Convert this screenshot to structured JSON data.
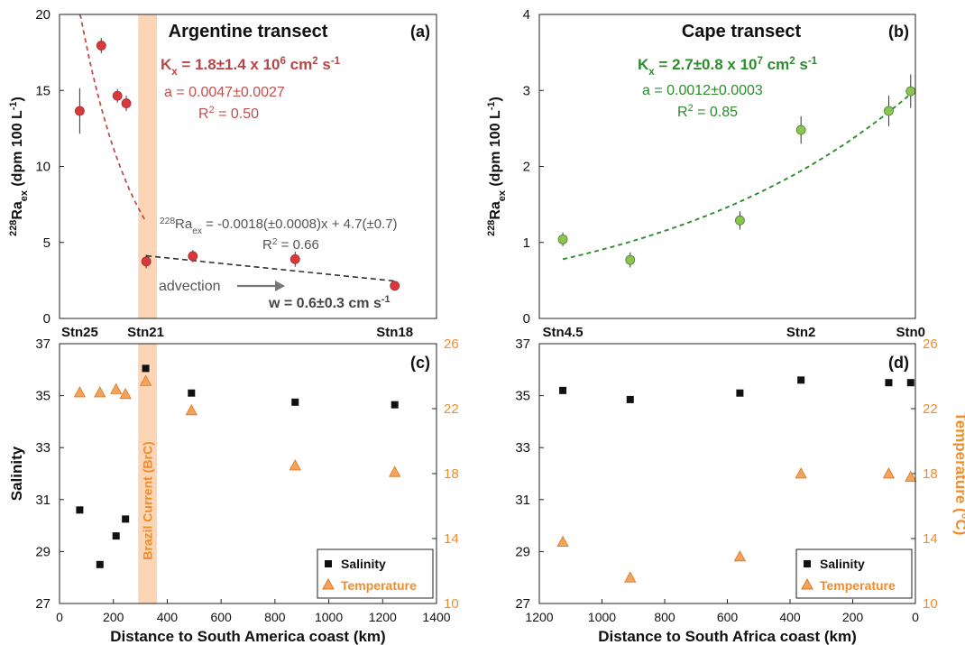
{
  "colors": {
    "red": "#c0504d",
    "red_marker": "#d9393a",
    "red_dark": "#b84545",
    "green": "#2e8b2e",
    "green_marker": "#8cc452",
    "orange": "#f28c28",
    "orange_fill": "#f5a25b",
    "brc_band": "#fbd5b5",
    "black": "#111111",
    "gray": "#555555"
  },
  "chart_data": [
    {
      "id": "a",
      "type": "scatter",
      "panel_label": "(a)",
      "title": "Argentine transect",
      "ylabel": "228Raex (dpm 100 L-1)",
      "xlim": [
        0,
        1400
      ],
      "ylim": [
        0,
        20
      ],
      "yticks": [
        0,
        5,
        10,
        15,
        20
      ],
      "station_labels": [
        {
          "text": "Stn25",
          "x": 75
        },
        {
          "text": "Stn21",
          "x": 320
        },
        {
          "text": "Stn18",
          "x": 1245
        }
      ],
      "series": [
        {
          "x": [
            75,
            155,
            215,
            248,
            322,
            495,
            875,
            1245
          ],
          "y": [
            13.65,
            17.95,
            14.65,
            14.15,
            3.75,
            4.1,
            3.9,
            2.15
          ],
          "err": [
            1.5,
            0.5,
            0.45,
            0.5,
            0.45,
            0.4,
            0.5,
            0.25
          ]
        }
      ],
      "fit_exp": {
        "a": 0.0047,
        "x_range": [
          75,
          322
        ],
        "y0": 20.2,
        "x0": 75
      },
      "fit_linear": {
        "slope": -0.0018,
        "intercept": 4.7,
        "x_range": [
          322,
          1245
        ]
      },
      "annotations": {
        "kx_main": "K",
        "kx_sub": "x",
        "kx_value": " = 1.8±1.4 x 10",
        "kx_exp": "6",
        "kx_unit": " cm",
        "kx_unit_exp": "2",
        "kx_tail": " s",
        "kx_tail_exp": "-1",
        "a_text": "a = 0.0047±0.0027",
        "r2_main": "R",
        "r2_exp": "2",
        "r2_value": " = 0.50",
        "lin_sup": "228",
        "lin_main": "Ra",
        "lin_sub": "ex",
        "lin_eq": " = -0.0018(±0.0008)x + 4.7(±0.7)",
        "lin_r2_main": "R",
        "lin_r2_exp": "2",
        "lin_r2_value": " = 0.66",
        "advection": "advection",
        "w_text": "w = 0.6±0.3 cm s",
        "w_exp": "-1"
      }
    },
    {
      "id": "b",
      "type": "scatter",
      "panel_label": "(b)",
      "title": "Cape transect",
      "ylabel": "228Raex (dpm 100 L-1)",
      "xlim": [
        1200,
        0
      ],
      "ylim": [
        0,
        4
      ],
      "yticks": [
        0,
        1,
        2,
        3,
        4
      ],
      "station_labels": [
        {
          "text": "Stn4.5",
          "x": 1125
        },
        {
          "text": "Stn2",
          "x": 365
        },
        {
          "text": "Stn0",
          "x": 15
        }
      ],
      "series": [
        {
          "x": [
            1125,
            910,
            560,
            365,
            85,
            15
          ],
          "y": [
            1.04,
            0.77,
            1.29,
            2.48,
            2.73,
            2.99
          ],
          "err": [
            0.09,
            0.1,
            0.12,
            0.18,
            0.2,
            0.22
          ]
        }
      ],
      "fit_exp": {
        "a": 0.0012,
        "x_range": [
          1125,
          15
        ],
        "y0": 0.78,
        "x0": 1125
      },
      "annotations": {
        "kx_main": "K",
        "kx_sub": "x",
        "kx_value": " = 2.7±0.8 x 10",
        "kx_exp": "7",
        "kx_unit": " cm",
        "kx_unit_exp": "2",
        "kx_tail": " s",
        "kx_tail_exp": "-1",
        "a_text": "a = 0.0012±0.0003",
        "r2_main": "R",
        "r2_exp": "2",
        "r2_value": " = 0.85"
      }
    },
    {
      "id": "c",
      "type": "scatter",
      "panel_label": "(c)",
      "xlabel": "Distance to South America coast (km)",
      "ylabel": "Salinity",
      "xlim": [
        0,
        1400
      ],
      "xticks": [
        0,
        200,
        400,
        600,
        800,
        1000,
        1200,
        1400
      ],
      "ylim": [
        27,
        37
      ],
      "yticks": [
        27,
        29,
        31,
        33,
        35,
        37
      ],
      "y2lim": [
        10,
        26
      ],
      "y2ticks": [
        10,
        14,
        18,
        22,
        26
      ],
      "band_label": "Brazil Current (BrC)",
      "band_range": [
        292,
        362
      ],
      "series": [
        {
          "name": "Salinity",
          "x": [
            75,
            150,
            210,
            245,
            320,
            490,
            875,
            1245
          ],
          "y": [
            30.6,
            28.5,
            29.6,
            30.25,
            36.05,
            35.1,
            34.75,
            34.65
          ]
        },
        {
          "name": "Temperature",
          "x": [
            75,
            150,
            210,
            245,
            320,
            490,
            875,
            1245
          ],
          "y": [
            23.0,
            23.0,
            23.2,
            22.9,
            23.7,
            21.9,
            18.5,
            18.1
          ]
        }
      ],
      "legend": [
        "Salinity",
        "Temperature"
      ]
    },
    {
      "id": "d",
      "type": "scatter",
      "panel_label": "(d)",
      "xlabel": "Distance to South Africa coast (km)",
      "ylabel": "Temperature (°C)",
      "xlim": [
        1200,
        0
      ],
      "xticks": [
        1200,
        1000,
        800,
        600,
        400,
        200,
        0
      ],
      "ylim": [
        27,
        37
      ],
      "yticks": [
        27,
        29,
        31,
        33,
        35,
        37
      ],
      "y2lim": [
        10,
        26
      ],
      "y2ticks": [
        10,
        14,
        18,
        22,
        26
      ],
      "series": [
        {
          "name": "Salinity",
          "x": [
            1125,
            910,
            560,
            365,
            85,
            15
          ],
          "y": [
            35.2,
            34.85,
            35.1,
            35.6,
            35.5,
            35.5
          ]
        },
        {
          "name": "Temperature",
          "x": [
            1125,
            910,
            560,
            365,
            85,
            15
          ],
          "y": [
            13.8,
            11.6,
            12.9,
            18.0,
            18.0,
            17.8
          ]
        }
      ],
      "legend": [
        "Salinity",
        "Temperature"
      ]
    }
  ]
}
